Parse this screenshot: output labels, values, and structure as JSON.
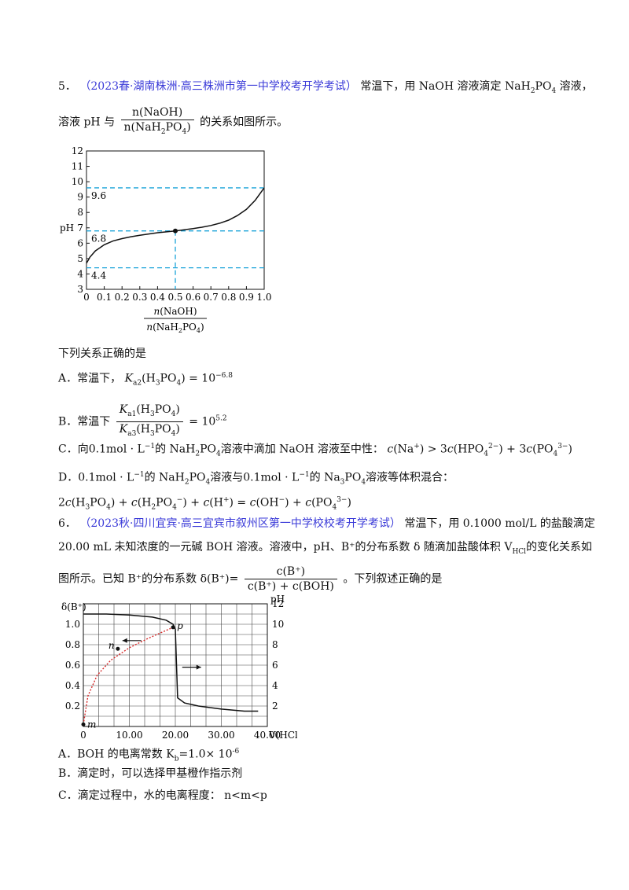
{
  "q5": {
    "number": "5．",
    "source": "（2023春·湖南株洲·高三株洲市第一中学校考开学考试）",
    "stem_a": "常温下，用 NaOH 溶液滴定",
    "species": "NaH",
    "stem_b": "溶液，",
    "stem_line2_a": "溶液 pH 与",
    "frac_num": "n(NaOH)",
    "frac_den": "n(NaH",
    "stem_line2_b": "的关系如图所示。",
    "question": "下列关系正确的是",
    "opt_a_pre": "A．常温下，",
    "opt_a_val": "10",
    "opt_a_exp": "−6.8",
    "opt_b_pre": "B．常温下",
    "opt_b_val": "= 10",
    "opt_b_exp": "5.2",
    "opt_c_pre": "C．向",
    "opt_c_conc": "0.1mol · L",
    "opt_c_mid": "的 NaH",
    "opt_c_text": "溶液中滴加 NaOH 溶液至中性：",
    "opt_d_pre": "D．",
    "opt_d_mid1": "的 NaH",
    "opt_d_mid2": "溶液与",
    "opt_d_mid3": "的 Na",
    "opt_d_end": "溶液等体积混合："
  },
  "q6": {
    "number": "6．",
    "source": "（2023秋·四川宜宾·高三宜宾市叙州区第一中学校校考开学考试）",
    "stem_a": "常温下，用 0.1000 mol/L 的盐酸滴定",
    "stem_line2": "20.00 mL 未知浓度的一元碱 BOH 溶液。溶液中，pH、B⁺的分布系数 δ 随滴加盐酸体积 V",
    "stem_line2_sub": "HCl",
    "stem_line2_end": "的变化关系如",
    "stem_line3_a": "图所示。已知 B⁺的分布系数",
    "delta": "δ(B⁺)=",
    "frac_num": "c(B⁺)",
    "frac_den": "c(B⁺) + c(BOH)",
    "stem_line3_b": "。下列叙述正确的是",
    "opt_a": "A．BOH 的电离常数 K",
    "opt_a_sub": "b",
    "opt_a_val": "=1.0× 10",
    "opt_a_exp": "-6",
    "opt_b": "B．滴定时，可以选择甲基橙作指示剂",
    "opt_c": "C．滴定过程中，水的电离程度：  n<m<p"
  },
  "chart_data": [
    {
      "type": "line",
      "title": "",
      "xlabel": "n(NaOH) / n(NaH2PO4)",
      "ylabel": "pH",
      "xlim": [
        0,
        1.0
      ],
      "ylim": [
        3,
        12
      ],
      "x_ticks": [
        "0",
        "0.1",
        "0.2",
        "0.3",
        "0.4",
        "0.5",
        "0.6",
        "0.7",
        "0.8",
        "0.9",
        "1.0"
      ],
      "y_ticks": [
        "3",
        "4",
        "5",
        "6",
        "7",
        "8",
        "9",
        "10",
        "11",
        "12"
      ],
      "series": [
        {
          "x": [
            0,
            0.02,
            0.05,
            0.1,
            0.15,
            0.2,
            0.25,
            0.3,
            0.35,
            0.4,
            0.45,
            0.5,
            0.55,
            0.6,
            0.65,
            0.7,
            0.75,
            0.8,
            0.85,
            0.9,
            0.95,
            1.0
          ],
          "y": [
            4.7,
            5.1,
            5.5,
            5.9,
            6.15,
            6.3,
            6.42,
            6.52,
            6.6,
            6.68,
            6.74,
            6.8,
            6.87,
            6.95,
            7.04,
            7.15,
            7.3,
            7.5,
            7.8,
            8.2,
            8.8,
            9.6
          ]
        }
      ],
      "reference_lines": [
        {
          "label": "9.6",
          "y": 9.6
        },
        {
          "label": "6.8",
          "y": 6.8
        },
        {
          "label": "4.4",
          "y": 4.4
        }
      ],
      "marked_point": {
        "x": 0.5,
        "y": 6.8
      },
      "grid": false
    },
    {
      "type": "line",
      "title": "",
      "xlabel": "V(HCl)/mL",
      "ylabel_left": "δ(B⁺)",
      "ylabel_right": "pH",
      "xlim": [
        0,
        40
      ],
      "ylim_left": [
        0,
        1.2
      ],
      "ylim_right": [
        0,
        12
      ],
      "x_ticks": [
        "0",
        "10.00",
        "20.00",
        "30.00",
        "40.00"
      ],
      "y_ticks_left": [
        "0.2",
        "0.4",
        "0.6",
        "0.8",
        "1.0"
      ],
      "y_ticks_right": [
        "2",
        "4",
        "6",
        "8",
        "10",
        "12"
      ],
      "grid": true,
      "series": [
        {
          "name": "pH",
          "x": [
            0,
            5,
            10,
            15,
            18,
            19.5,
            20,
            20.5,
            22,
            25,
            30,
            35,
            38
          ],
          "y": [
            11,
            11,
            10.9,
            10.7,
            10.4,
            10.0,
            9.5,
            2.8,
            2.3,
            2.0,
            1.7,
            1.5,
            1.5
          ]
        },
        {
          "name": "δ(B⁺)",
          "x": [
            0,
            1,
            3,
            6,
            10,
            14,
            17,
            19.5
          ],
          "y": [
            0.02,
            0.3,
            0.5,
            0.65,
            0.77,
            0.86,
            0.92,
            0.97
          ]
        }
      ],
      "points": [
        {
          "label": "m",
          "x": 0,
          "y": 0.02
        },
        {
          "label": "n",
          "x": 7.5,
          "y": 0.76
        },
        {
          "label": "p",
          "x": 19.5,
          "y": 0.97
        }
      ]
    }
  ]
}
